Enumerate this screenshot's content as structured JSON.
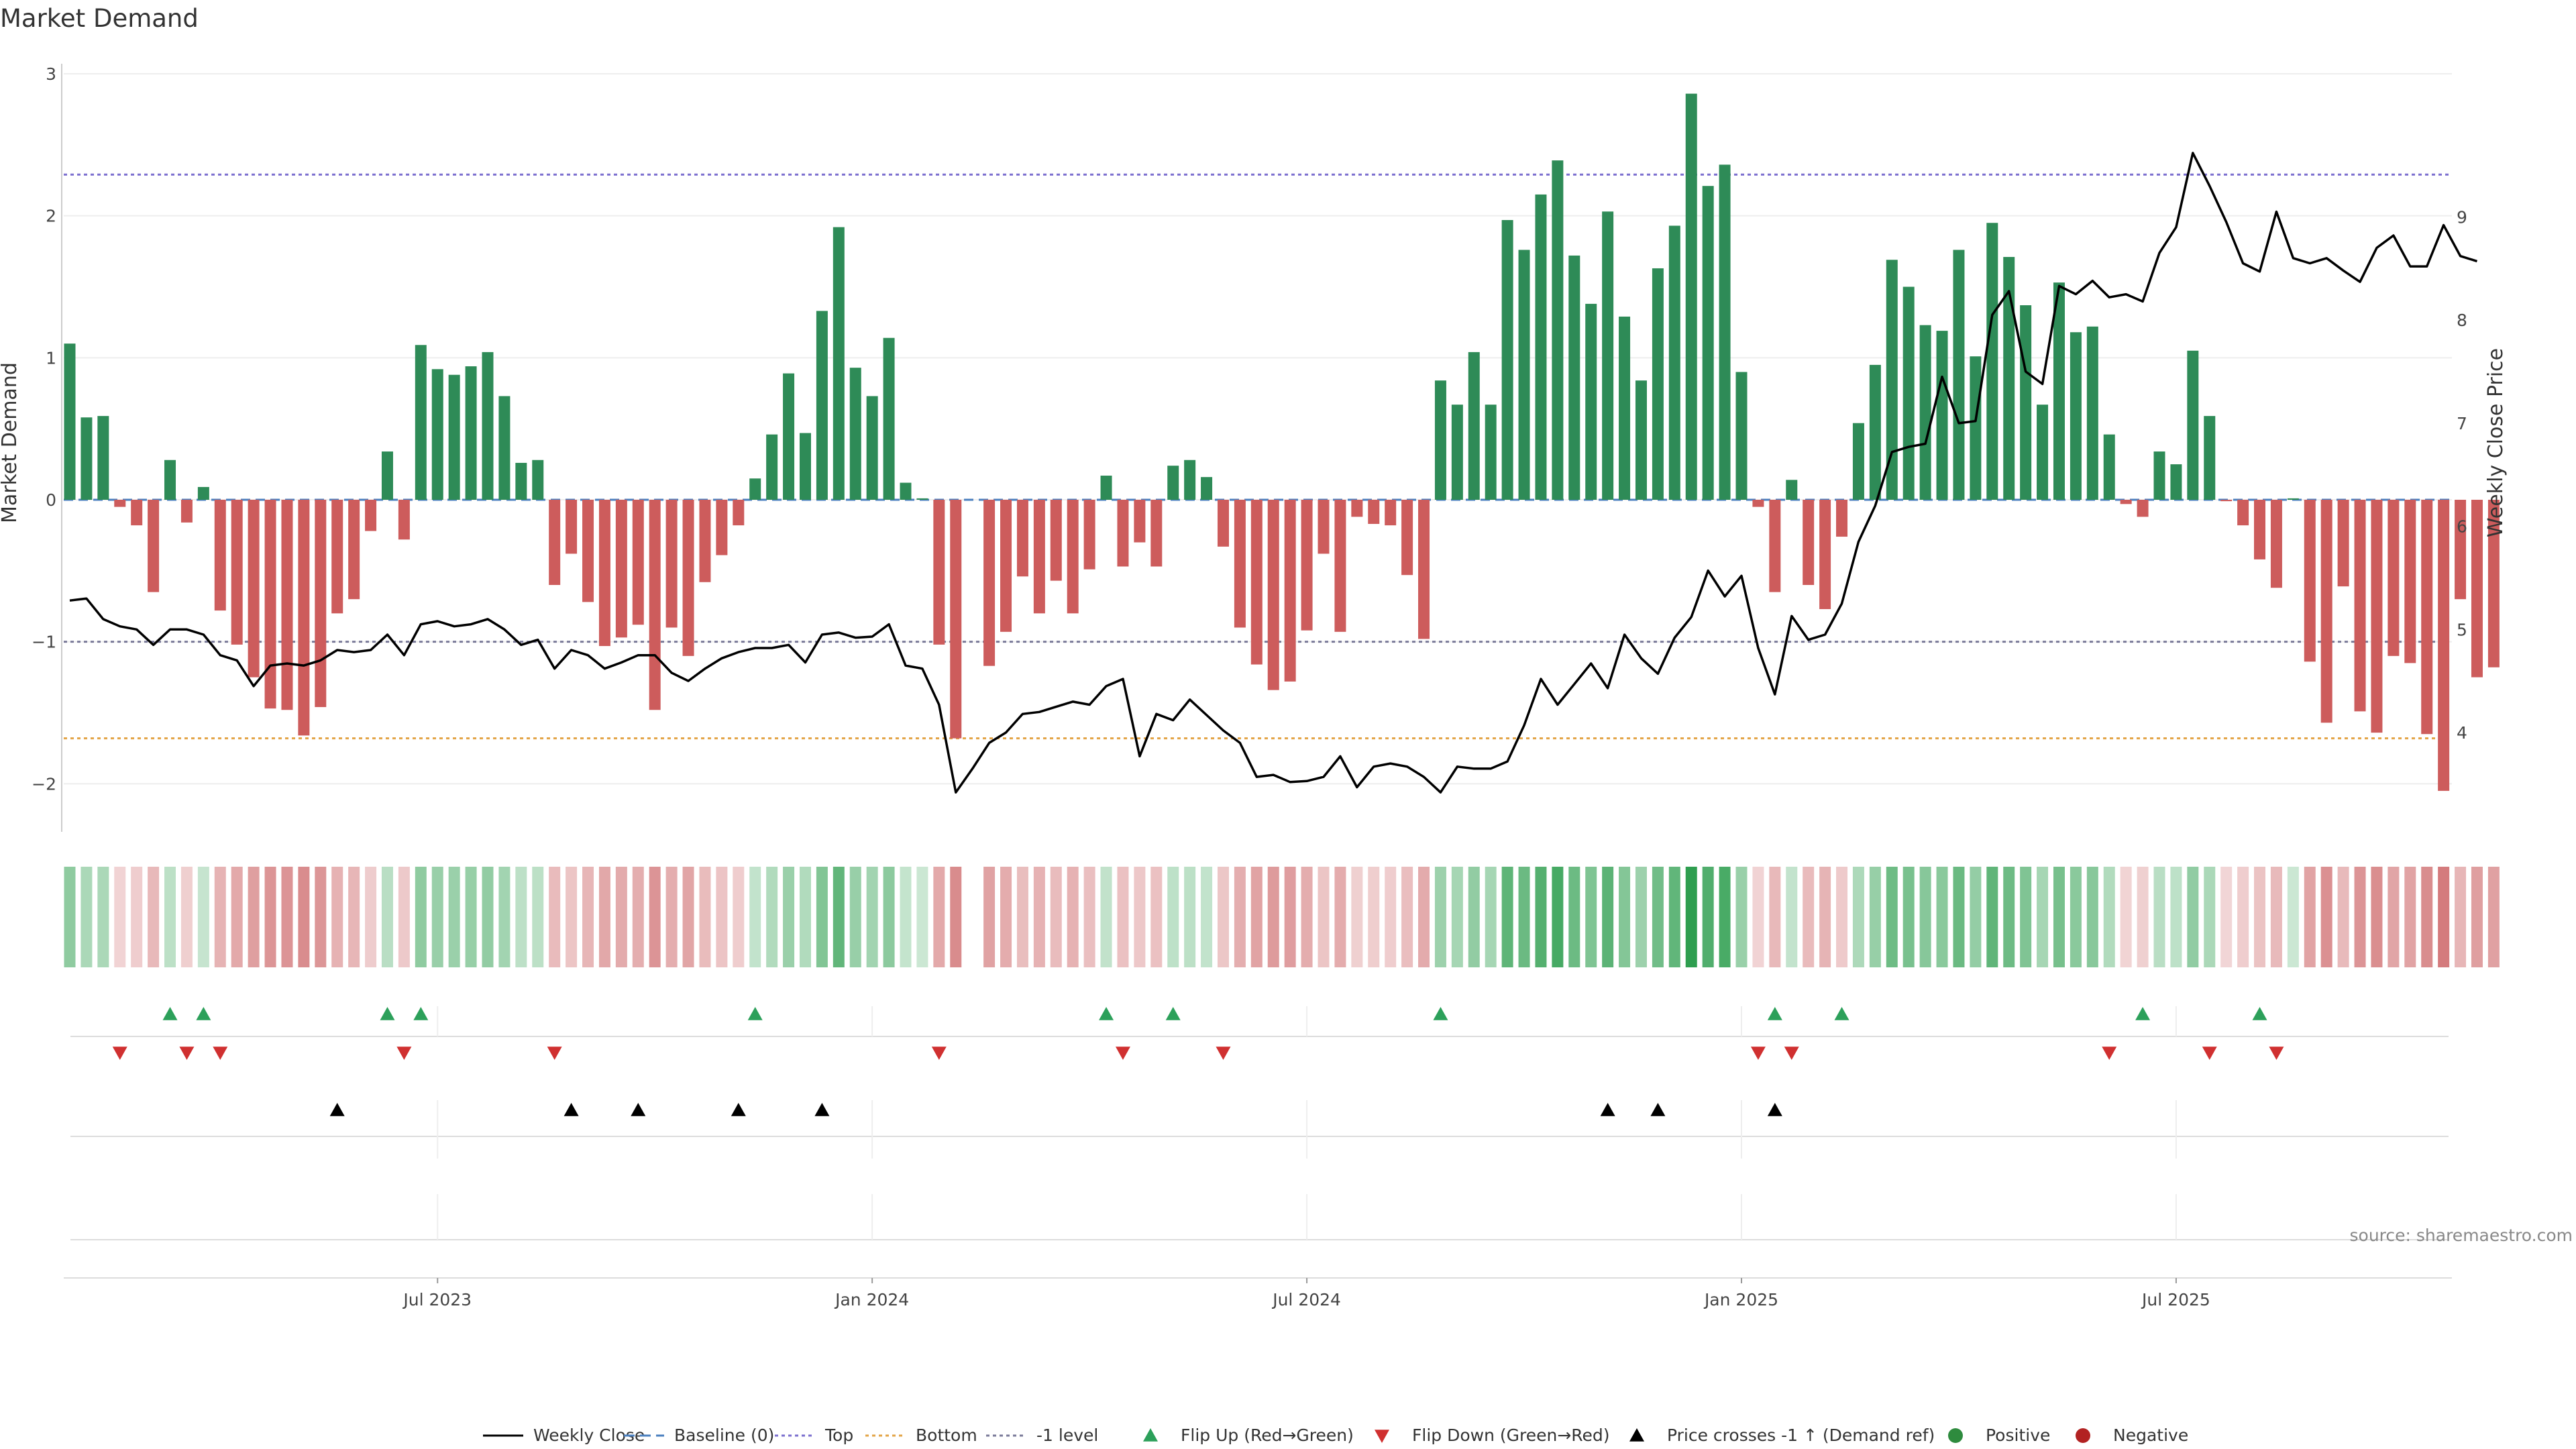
{
  "chart_data": {
    "type": "bar",
    "title": "Market Demand",
    "ylabel": "Market Demand",
    "y2label": "Weekly Close Price",
    "source": "source: sharemaestro.com",
    "ylim": [
      -2.3,
      3
    ],
    "y2lim": [
      3.07,
      10.42
    ],
    "y_ticks": [
      3,
      2,
      1,
      0,
      -1,
      -2
    ],
    "y_tick_labels": [
      "3",
      "2",
      "1",
      "0",
      "−1",
      "−2"
    ],
    "y2_ticks": [
      4,
      5,
      6,
      7,
      8,
      9
    ],
    "y2_tick_labels": [
      "4",
      "5",
      "6",
      "7",
      "8",
      "9"
    ],
    "x_ticks": [
      {
        "week": 22,
        "label": "Jul 2023"
      },
      {
        "week": 48,
        "label": "Jan 2024"
      },
      {
        "week": 74,
        "label": "Jul 2024"
      },
      {
        "week": 100,
        "label": "Jan 2025"
      },
      {
        "week": 126,
        "label": "Jul 2025"
      }
    ],
    "x_range": [
      0,
      143
    ],
    "reference_lines": [
      {
        "name": "Top",
        "value": 2.29,
        "color": "#7b6fcf"
      },
      {
        "name": "Bottom",
        "value": -1.68,
        "color": "#e3a447"
      },
      {
        "name": "-1 level",
        "value": -1.0,
        "color": "#7a7a99"
      },
      {
        "name": "Baseline (0)",
        "value": 0,
        "color": "#4a7fbf"
      }
    ],
    "demand": [
      1.1,
      0.58,
      0.59,
      -0.05,
      -0.18,
      -0.65,
      0.28,
      -0.16,
      0.09,
      -0.78,
      -1.02,
      -1.25,
      -1.47,
      -1.48,
      -1.66,
      -1.46,
      -0.8,
      -0.7,
      -0.22,
      0.34,
      -0.28,
      1.09,
      0.92,
      0.88,
      0.94,
      1.04,
      0.73,
      0.26,
      0.28,
      -0.6,
      -0.38,
      -0.72,
      -1.03,
      -0.97,
      -0.88,
      -1.48,
      -0.9,
      -1.1,
      -0.58,
      -0.39,
      -0.18,
      0.15,
      0.46,
      0.89,
      0.47,
      1.33,
      1.92,
      0.93,
      0.73,
      1.14,
      0.12,
      0.01,
      -1.02,
      -1.68,
      0,
      -1.17,
      -0.93,
      -0.54,
      -0.8,
      -0.57,
      -0.8,
      -0.49,
      0.17,
      -0.47,
      -0.3,
      -0.47,
      0.24,
      0.28,
      0.16,
      -0.33,
      -0.9,
      -1.16,
      -1.34,
      -1.28,
      -0.92,
      -0.38,
      -0.93,
      -0.12,
      -0.17,
      -0.18,
      -0.53,
      -0.98,
      0.84,
      0.67,
      1.04,
      0.67,
      1.97,
      1.76,
      2.15,
      2.39,
      1.72,
      1.38,
      2.03,
      1.29,
      0.84,
      1.63,
      1.93,
      2.86,
      2.21,
      2.36,
      0.9,
      -0.05,
      -0.65,
      0.14,
      -0.6,
      -0.77,
      -0.26,
      0.54,
      0.95,
      1.69,
      1.5,
      1.23,
      1.19,
      1.76,
      1.01,
      1.95,
      1.71,
      1.37,
      0.67,
      1.53,
      1.18,
      1.22,
      0.46,
      -0.03,
      -0.12,
      0.34,
      0.25,
      1.05,
      0.59,
      -0.01,
      -0.18,
      -0.42,
      -0.62,
      0.01,
      -1.14,
      -1.57,
      -0.61,
      -1.49,
      -1.64,
      -1.1,
      -1.15,
      -1.65,
      -2.05,
      -0.7,
      -1.25,
      -1.18
    ],
    "weekly_close": [
      5.28,
      5.3,
      5.1,
      5.03,
      5.0,
      4.85,
      5.0,
      5.0,
      4.95,
      4.75,
      4.7,
      4.45,
      4.65,
      4.67,
      4.65,
      4.7,
      4.8,
      4.78,
      4.8,
      4.95,
      4.75,
      5.05,
      5.08,
      5.03,
      5.05,
      5.1,
      5.0,
      4.85,
      4.9,
      4.62,
      4.8,
      4.75,
      4.62,
      4.68,
      4.75,
      4.75,
      4.58,
      4.5,
      4.62,
      4.72,
      4.78,
      4.82,
      4.82,
      4.85,
      4.68,
      4.95,
      4.97,
      4.92,
      4.93,
      5.05,
      4.65,
      4.62,
      4.27,
      3.42,
      3.65,
      3.9,
      4.0,
      4.18,
      4.2,
      4.25,
      4.3,
      4.27,
      4.45,
      4.52,
      3.77,
      4.18,
      4.12,
      4.32,
      4.17,
      4.02,
      3.9,
      3.57,
      3.59,
      3.52,
      3.53,
      3.57,
      3.77,
      3.47,
      3.67,
      3.7,
      3.67,
      3.57,
      3.42,
      3.67,
      3.65,
      3.65,
      3.72,
      4.07,
      4.52,
      4.27,
      4.47,
      4.67,
      4.43,
      4.95,
      4.72,
      4.57,
      4.92,
      5.12,
      5.57,
      5.32,
      5.52,
      4.82,
      4.37,
      5.13,
      4.9,
      4.95,
      5.25,
      5.85,
      6.2,
      6.72,
      6.77,
      6.8,
      7.45,
      7.0,
      7.02,
      8.05,
      8.28,
      7.5,
      7.38,
      8.33,
      8.25,
      8.38,
      8.22,
      8.25,
      8.18,
      8.65,
      8.9,
      9.62,
      9.3,
      8.95,
      8.55,
      8.47,
      9.05,
      8.6,
      8.55,
      8.6,
      8.48,
      8.37,
      8.7,
      8.82,
      8.52,
      8.52,
      8.92,
      8.62,
      8.57
    ],
    "flip_up_weeks": [
      6,
      8,
      19,
      21,
      41,
      62,
      66,
      82,
      102,
      106,
      124,
      131
    ],
    "flip_down_weeks": [
      3,
      7,
      9,
      20,
      29,
      52,
      63,
      69,
      101,
      103,
      122,
      128,
      132
    ],
    "price_cross_weeks": [
      16,
      30,
      34,
      40,
      45,
      92,
      95,
      102
    ],
    "legend": [
      {
        "label": "Weekly Close",
        "kind": "line",
        "color": "#000000"
      },
      {
        "label": "Baseline (0)",
        "kind": "dash",
        "color": "#4a7fbf"
      },
      {
        "label": "Top",
        "kind": "dot",
        "color": "#7b6fcf"
      },
      {
        "label": "Bottom",
        "kind": "dot",
        "color": "#e3a447"
      },
      {
        "label": "-1 level",
        "kind": "dot",
        "color": "#7a7a99"
      },
      {
        "label": "Flip Up (Red→Green)",
        "kind": "tri-up",
        "color": "#2ca05a"
      },
      {
        "label": "Flip Down (Green→Red)",
        "kind": "tri-down",
        "color": "#d03030"
      },
      {
        "label": "Price crosses -1 ↑ (Demand ref)",
        "kind": "tri-up",
        "color": "#000000"
      },
      {
        "label": "Positive",
        "kind": "circle",
        "color": "#2e8b3e"
      },
      {
        "label": "Negative",
        "kind": "circle",
        "color": "#b22222"
      }
    ],
    "colors": {
      "positive_bar": "#2e8b57",
      "negative_bar": "#cd5c5c",
      "heat_positive": "#2e9e4f",
      "heat_negative": "#c8585a",
      "price_line": "#000000"
    }
  }
}
